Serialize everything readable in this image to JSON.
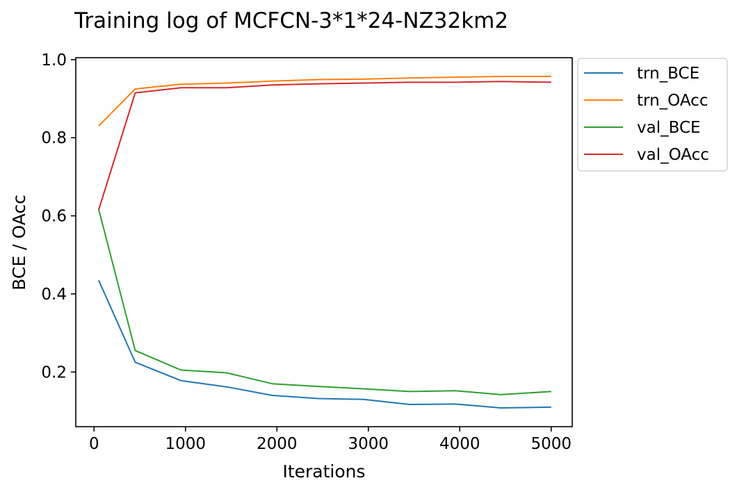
{
  "chart_data": {
    "type": "line",
    "title": "Training log of MCFCN-3*1*24-NZ32km2",
    "xlabel": "Iterations",
    "ylabel": "BCE / OAcc",
    "xlim": [
      -200,
      5230
    ],
    "ylim": [
      0.06,
      1.005
    ],
    "xticks": [
      0,
      1000,
      2000,
      3000,
      4000,
      5000
    ],
    "xtick_labels": [
      "0",
      "1000",
      "2000",
      "3000",
      "4000",
      "5000"
    ],
    "yticks": [
      0.2,
      0.4,
      0.6,
      0.8,
      1.0
    ],
    "ytick_labels": [
      "0.2",
      "0.4",
      "0.6",
      "0.8",
      "1.0"
    ],
    "grid": false,
    "legend_position": "outside-top-right",
    "x": [
      50,
      450,
      950,
      1450,
      1950,
      2450,
      2950,
      3450,
      3950,
      4450,
      5000
    ],
    "series": [
      {
        "name": "trn_BCE",
        "color": "#1f77b4",
        "values": [
          0.435,
          0.225,
          0.178,
          0.162,
          0.14,
          0.132,
          0.13,
          0.117,
          0.118,
          0.108,
          0.11
        ]
      },
      {
        "name": "trn_OAcc",
        "color": "#ff7f0e",
        "values": [
          0.83,
          0.925,
          0.937,
          0.94,
          0.945,
          0.949,
          0.95,
          0.953,
          0.955,
          0.957,
          0.957
        ]
      },
      {
        "name": "val_BCE",
        "color": "#2ca02c",
        "values": [
          0.617,
          0.255,
          0.205,
          0.198,
          0.17,
          0.163,
          0.157,
          0.15,
          0.152,
          0.142,
          0.15
        ]
      },
      {
        "name": "val_OAcc",
        "color": "#d62728",
        "values": [
          0.615,
          0.915,
          0.928,
          0.928,
          0.935,
          0.938,
          0.94,
          0.942,
          0.942,
          0.944,
          0.942
        ]
      }
    ]
  }
}
